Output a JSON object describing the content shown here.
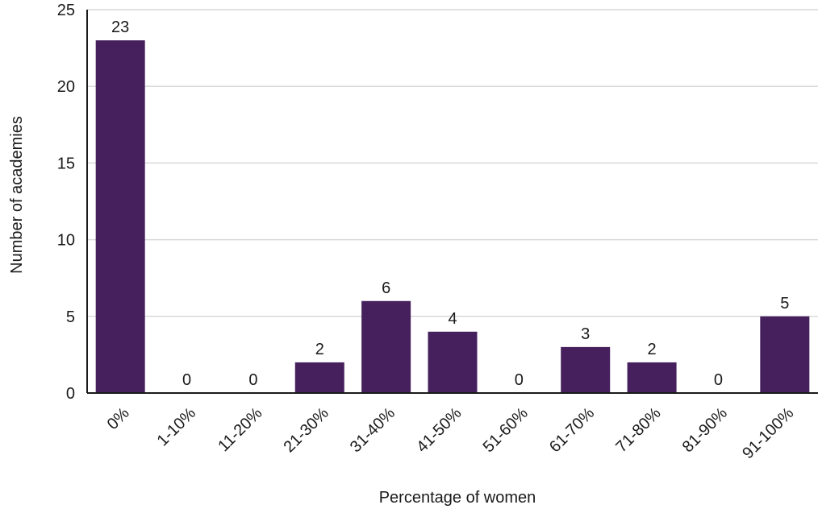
{
  "chart_data": {
    "type": "bar",
    "categories": [
      "0%",
      "1-10%",
      "11-20%",
      "21-30%",
      "31-40%",
      "41-50%",
      "51-60%",
      "61-70%",
      "71-80%",
      "81-90%",
      "91-100%"
    ],
    "values": [
      23,
      0,
      0,
      2,
      6,
      4,
      0,
      3,
      2,
      0,
      5
    ],
    "xlabel": "Percentage of women",
    "ylabel": "Number of academies",
    "ylim": [
      0,
      25
    ],
    "yticks": [
      0,
      5,
      10,
      15,
      20,
      25
    ],
    "grid": true,
    "data_labels": true,
    "colors": {
      "bar": "#46205c",
      "grid": "#d9d9d9",
      "axis": "#1a1a1a"
    }
  }
}
